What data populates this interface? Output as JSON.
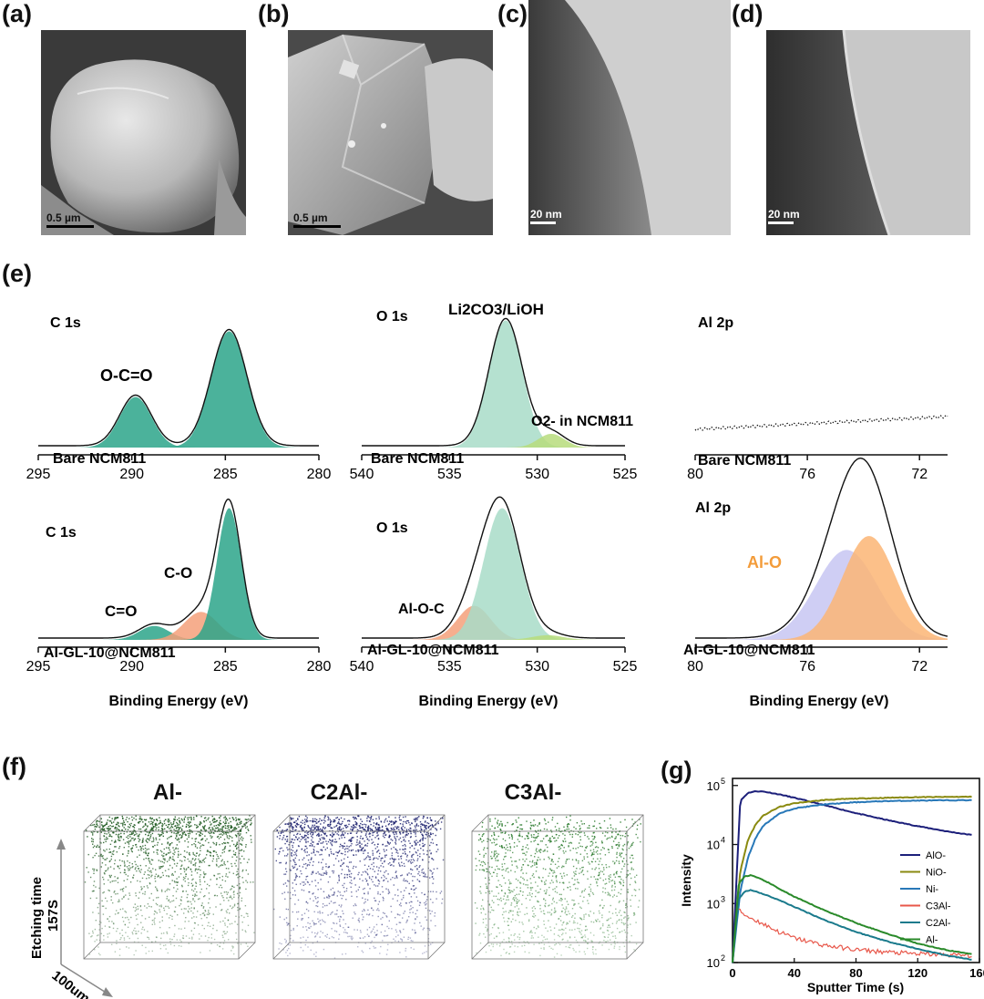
{
  "panels": {
    "a": {
      "label": "(a)",
      "scale": "0.5 µm"
    },
    "b": {
      "label": "(b)",
      "scale": "0.5 µm"
    },
    "c": {
      "label": "(c)",
      "scale": "20 nm"
    },
    "d": {
      "label": "(d)",
      "scale": "20 nm"
    },
    "e": {
      "label": "(e)"
    },
    "f": {
      "label": "(f)"
    },
    "g": {
      "label": "(g)"
    }
  },
  "xps": {
    "xlabel": "Binding Energy (eV)",
    "c1s": {
      "title": "C 1s",
      "x_ticks": [
        295,
        290,
        285,
        280
      ],
      "bare": {
        "sample": "Bare NCM811",
        "peak_labels": [
          "O-C=O"
        ],
        "peaks": [
          {
            "center": 289.8,
            "height": 0.37,
            "width": 0.85,
            "color": "#2ba58a"
          },
          {
            "center": 284.8,
            "height": 0.85,
            "width": 0.95,
            "color": "#2ba58a"
          }
        ]
      },
      "coated": {
        "sample": "Al-GL-10@NCM811",
        "peak_labels": [
          "C=O",
          "C-O"
        ],
        "peaks": [
          {
            "center": 288.8,
            "height": 0.09,
            "width": 0.8,
            "color": "#2ba58a"
          },
          {
            "center": 286.3,
            "height": 0.18,
            "width": 0.9,
            "color": "#f4a07a"
          },
          {
            "center": 284.8,
            "height": 0.85,
            "width": 0.65,
            "color": "#2ba58a"
          }
        ]
      }
    },
    "o1s": {
      "title": "O 1s",
      "x_ticks": [
        540,
        535,
        530,
        525
      ],
      "bare": {
        "sample": "Bare NCM811",
        "peak_labels": [
          "Li2CO3/LiOH",
          "O2- in NCM811"
        ],
        "peaks": [
          {
            "center": 531.8,
            "height": 0.93,
            "width": 0.95,
            "color": "#a8dcc8"
          },
          {
            "center": 529.2,
            "height": 0.1,
            "width": 0.75,
            "color": "#b7dc7c"
          }
        ]
      },
      "coated": {
        "sample": "Al-GL-10@NCM811",
        "peak_labels": [
          "Al-O-C"
        ],
        "peaks": [
          {
            "center": 533.6,
            "height": 0.22,
            "width": 0.95,
            "color": "#f4a07a"
          },
          {
            "center": 532.0,
            "height": 0.85,
            "width": 1.05,
            "color": "#a8dcc8"
          },
          {
            "center": 529.4,
            "height": 0.03,
            "width": 0.9,
            "color": "#b7dc7c"
          }
        ]
      }
    },
    "al2p": {
      "title": "Al 2p",
      "x_ticks": [
        80,
        76,
        72
      ],
      "bare": {
        "sample": "Bare NCM811",
        "peak_labels": [],
        "peaks": []
      },
      "coated": {
        "sample": "Al-GL-10@NCM811",
        "peak_labels": [
          "Al-O"
        ],
        "peaks": [
          {
            "center": 74.6,
            "height": 0.58,
            "width": 1.1,
            "color": "#c7c6f2"
          },
          {
            "center": 73.8,
            "height": 0.67,
            "width": 0.95,
            "color": "#fbb574"
          }
        ]
      }
    }
  },
  "tofsims_3d": {
    "species": [
      "Al-",
      "C2Al-",
      "C3Al-"
    ],
    "colors": [
      "#1e5a20",
      "#1f2470",
      "#2a7a2c"
    ],
    "axis_etch": "Etching time",
    "axis_etch_value": "157S",
    "axis_size": "100um"
  },
  "chart_data": {
    "type": "line",
    "xlabel": "Sputter Time (s)",
    "ylabel": "Intensity",
    "xlim": [
      0,
      160
    ],
    "ylim": [
      100,
      100000
    ],
    "yscale": "log",
    "x_ticks": [
      0,
      40,
      80,
      120,
      160
    ],
    "y_ticks": [
      "10",
      "10",
      "10",
      "10"
    ],
    "y_tick_exponents": [
      "2",
      "3",
      "4",
      "5"
    ],
    "legend_position": "right",
    "series": [
      {
        "name": "AlO-",
        "color": "#1c1f7a",
        "x": [
          0,
          5,
          10,
          15,
          20,
          30,
          40,
          60,
          80,
          100,
          120,
          140,
          155
        ],
        "y": [
          100,
          55000,
          75000,
          80000,
          79000,
          71000,
          62000,
          46000,
          34000,
          26000,
          20500,
          16500,
          14500
        ]
      },
      {
        "name": "NiO-",
        "color": "#8a8a10",
        "x": [
          0,
          5,
          10,
          15,
          20,
          30,
          40,
          60,
          80,
          100,
          120,
          140,
          155
        ],
        "y": [
          100,
          3500,
          12000,
          22000,
          31000,
          43000,
          50000,
          57000,
          60000,
          62000,
          63500,
          64000,
          64500
        ]
      },
      {
        "name": "Ni-",
        "color": "#2878b8",
        "x": [
          0,
          5,
          10,
          15,
          20,
          30,
          40,
          60,
          80,
          100,
          120,
          140,
          155
        ],
        "y": [
          100,
          1600,
          6000,
          13000,
          21000,
          33000,
          41000,
          48000,
          52000,
          54500,
          55500,
          56000,
          56500
        ]
      },
      {
        "name": "C3Al-",
        "color": "#e8574a",
        "x": [
          0,
          3,
          6,
          10,
          20,
          30,
          40,
          60,
          80,
          100,
          120,
          140,
          155
        ],
        "y": [
          100,
          800,
          700,
          600,
          450,
          330,
          260,
          195,
          165,
          150,
          140,
          135,
          132
        ]
      },
      {
        "name": "C2Al-",
        "color": "#1a7a8c",
        "x": [
          0,
          4,
          8,
          12,
          20,
          30,
          40,
          60,
          80,
          100,
          120,
          140,
          155
        ],
        "y": [
          100,
          1200,
          1600,
          1700,
          1450,
          1150,
          880,
          520,
          330,
          230,
          170,
          130,
          112
        ]
      },
      {
        "name": "Al-",
        "color": "#2a8a2a",
        "x": [
          0,
          4,
          8,
          12,
          20,
          30,
          40,
          60,
          80,
          100,
          120,
          140,
          155
        ],
        "y": [
          100,
          2200,
          2900,
          3000,
          2500,
          1800,
          1300,
          760,
          470,
          310,
          210,
          160,
          140
        ]
      }
    ]
  }
}
